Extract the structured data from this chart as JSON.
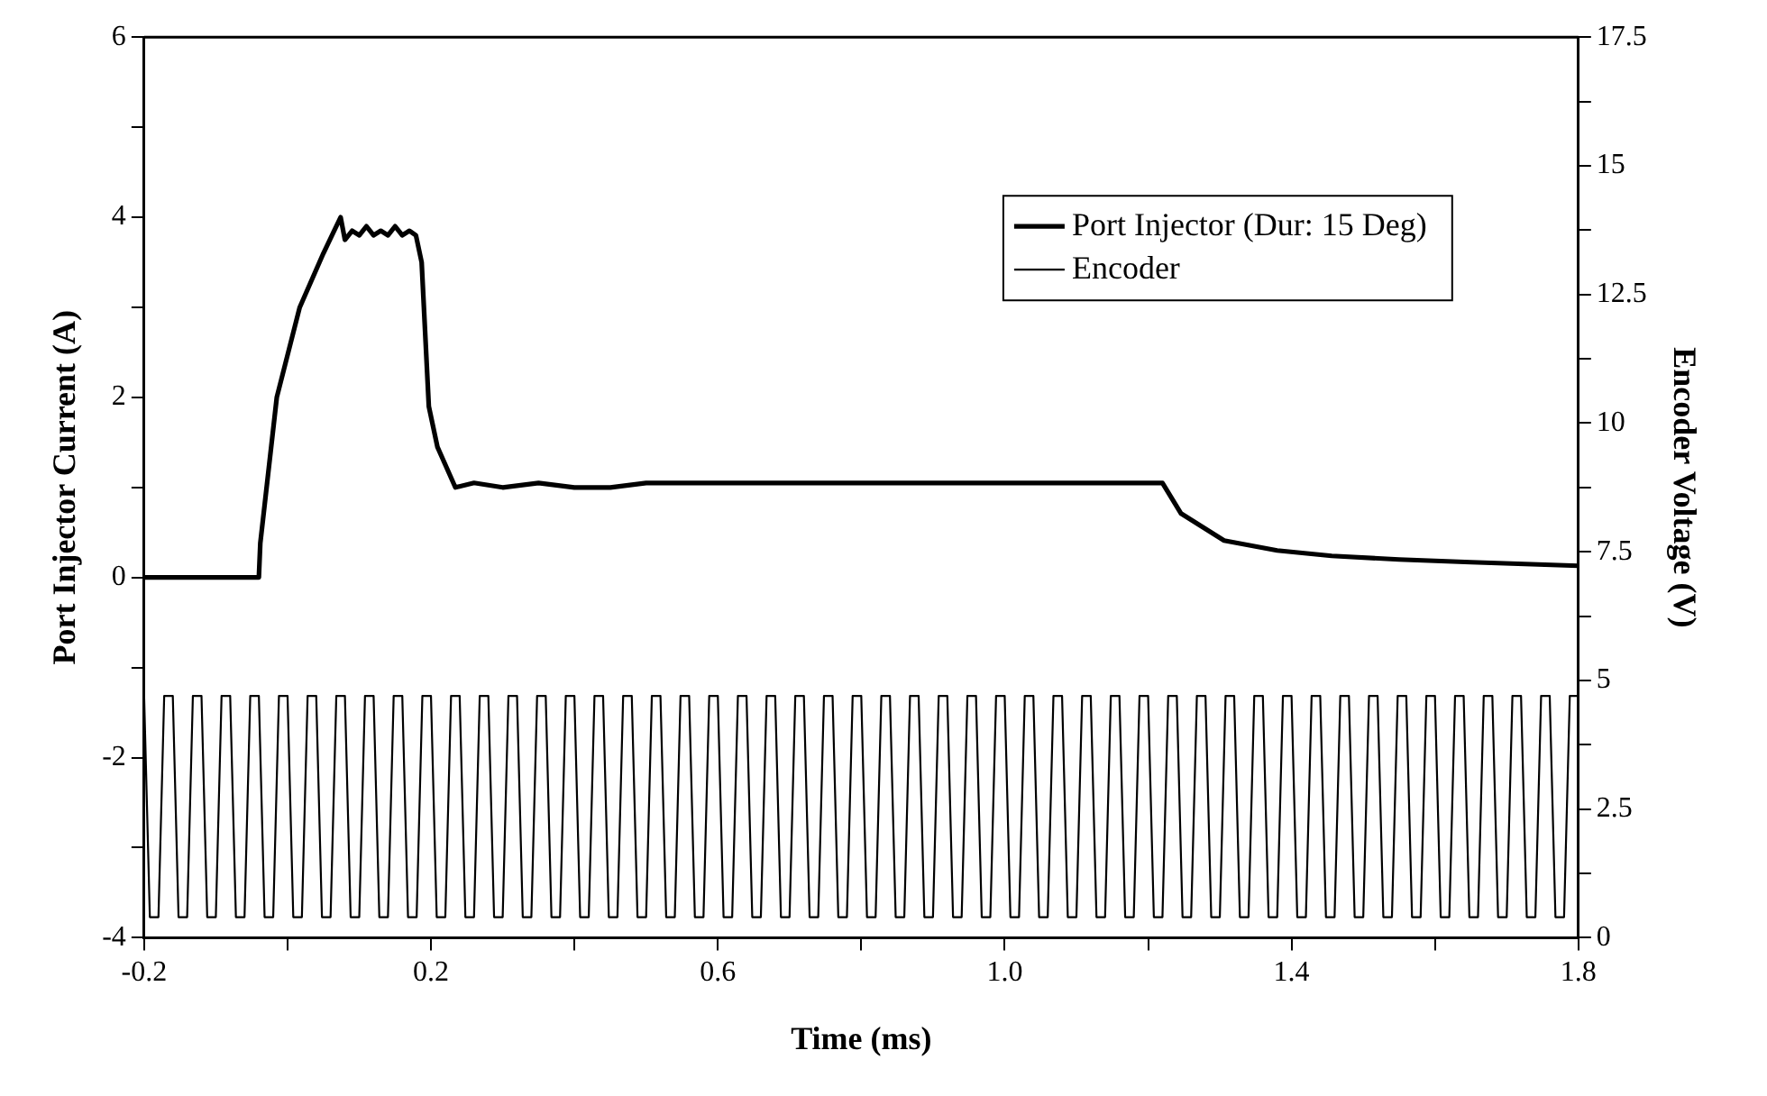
{
  "chart_data": {
    "type": "line",
    "xlabel": "Time (ms)",
    "ylabel": "Port Injector Current (A)",
    "y2label": "Encoder Voltage (V)",
    "xlim": [
      -0.2,
      1.8
    ],
    "xticks": [
      -0.2,
      {
        "value": 0,
        "label": null
      },
      0.2,
      {
        "value": 0.4,
        "label": null
      },
      0.6,
      {
        "value": 0.8,
        "label": null
      },
      {
        "value": 1,
        "label": "1.0"
      },
      {
        "value": 1.2,
        "label": null
      },
      1.4,
      {
        "value": 1.6,
        "label": null
      },
      1.8
    ],
    "ylim": [
      -4,
      6
    ],
    "yticks": [
      -4,
      {
        "value": -3,
        "label": null
      },
      -2,
      {
        "value": -1,
        "label": null
      },
      0,
      {
        "value": 1,
        "label": null
      },
      2,
      {
        "value": 3,
        "label": null
      },
      4,
      {
        "value": 5,
        "label": null
      },
      6
    ],
    "y2lim": [
      0,
      17.5
    ],
    "y2ticks": [
      0,
      {
        "value": 1.25,
        "label": null
      },
      2.5,
      {
        "value": 3.75,
        "label": null
      },
      5,
      {
        "value": 6.25,
        "label": null
      },
      7.5,
      {
        "value": 8.75,
        "label": null
      },
      10,
      {
        "value": 11.25,
        "label": null
      },
      12.5,
      {
        "value": 13.75,
        "label": null
      },
      15,
      {
        "value": 16.25,
        "label": null
      },
      17.5
    ],
    "grid": false,
    "legend": "top right",
    "series": [
      {
        "name": "Port Injector (Dur: 15 Deg)",
        "color": "#000000",
        "x": [
          -0.2,
          -0.04,
          -0.038,
          -0.015,
          0.017,
          0.05,
          0.074,
          0.08,
          0.09,
          0.1,
          0.11,
          0.12,
          0.13,
          0.14,
          0.15,
          0.16,
          0.17,
          0.179,
          0.187,
          0.197,
          0.209,
          0.234,
          0.26,
          0.3,
          0.35,
          0.4,
          0.45,
          0.5,
          0.6,
          0.7,
          0.8,
          0.9,
          1.0,
          1.1,
          1.2,
          1.22,
          1.246,
          1.306,
          1.38,
          1.456,
          1.55,
          1.65,
          1.8
        ],
        "values": [
          0,
          0,
          0.38,
          2.0,
          3.0,
          3.6,
          4.0,
          3.75,
          3.85,
          3.8,
          3.9,
          3.8,
          3.85,
          3.8,
          3.9,
          3.8,
          3.85,
          3.8,
          3.5,
          1.9,
          1.45,
          1.0,
          1.05,
          1.0,
          1.05,
          1.0,
          1.0,
          1.05,
          1.05,
          1.05,
          1.05,
          1.05,
          1.05,
          1.05,
          1.05,
          1.05,
          0.71,
          0.41,
          0.3,
          0.24,
          0.2,
          0.17,
          0.13
        ]
      },
      {
        "name": "Encoder",
        "color": "#000000",
        "axis": "y2",
        "x": [
          -0.2,
          -0.192,
          -0.18,
          -0.172,
          -0.16,
          -0.152,
          -0.14,
          -0.132,
          -0.12,
          -0.112,
          -0.1,
          -0.092,
          -0.08,
          -0.072,
          -0.06,
          -0.052,
          -0.04,
          -0.032,
          -0.02,
          -0.012,
          0,
          0.008,
          0.02,
          0.028,
          0.04,
          0.048,
          0.06,
          0.068,
          0.08,
          0.088,
          0.1,
          0.108,
          0.12,
          0.128,
          0.14,
          0.148,
          0.16,
          0.168,
          0.18,
          0.188,
          0.2,
          0.208,
          0.22,
          0.228,
          0.24,
          0.248,
          0.26,
          0.268,
          0.28,
          0.288,
          0.3,
          0.308,
          0.32,
          0.328,
          0.34,
          0.348,
          0.36,
          0.368,
          0.38,
          0.388,
          0.4,
          0.408,
          0.42,
          0.428,
          0.44,
          0.448,
          0.46,
          0.468,
          0.48,
          0.488,
          0.5,
          0.508,
          0.52,
          0.528,
          0.54,
          0.548,
          0.56,
          0.568,
          0.58,
          0.588,
          0.6,
          0.608,
          0.62,
          0.628,
          0.64,
          0.648,
          0.66,
          0.668,
          0.68,
          0.688,
          0.7,
          0.708,
          0.72,
          0.728,
          0.74,
          0.748,
          0.76,
          0.768,
          0.78,
          0.788,
          0.8,
          0.808,
          0.82,
          0.828,
          0.84,
          0.848,
          0.86,
          0.868,
          0.88,
          0.888,
          0.9,
          0.908,
          0.92,
          0.928,
          0.94,
          0.948,
          0.96,
          0.968,
          0.98,
          0.988,
          1.0,
          1.008,
          1.02,
          1.028,
          1.04,
          1.048,
          1.06,
          1.068,
          1.08,
          1.088,
          1.1,
          1.108,
          1.12,
          1.128,
          1.14,
          1.148,
          1.16,
          1.168,
          1.18,
          1.188,
          1.2,
          1.208,
          1.22,
          1.228,
          1.24,
          1.248,
          1.26,
          1.268,
          1.28,
          1.288,
          1.3,
          1.308,
          1.32,
          1.328,
          1.34,
          1.348,
          1.36,
          1.368,
          1.38,
          1.388,
          1.4,
          1.408,
          1.42,
          1.428,
          1.44,
          1.448,
          1.46,
          1.468,
          1.48,
          1.488,
          1.5,
          1.508,
          1.52,
          1.528,
          1.54,
          1.548,
          1.56,
          1.568,
          1.58,
          1.588,
          1.6,
          1.608,
          1.62,
          1.628,
          1.64,
          1.648,
          1.66,
          1.668,
          1.68,
          1.688,
          1.7,
          1.708,
          1.72,
          1.728,
          1.74,
          1.748,
          1.76,
          1.768,
          1.78,
          1.788,
          1.8
        ],
        "values": [
          4.7,
          0.4,
          0.4,
          4.7,
          4.7,
          0.4,
          0.4,
          4.7,
          4.7,
          0.4,
          0.4,
          4.7,
          4.7,
          0.4,
          0.4,
          4.7,
          4.7,
          0.4,
          0.4,
          4.7,
          4.7,
          0.4,
          0.4,
          4.7,
          4.7,
          0.4,
          0.4,
          4.7,
          4.7,
          0.4,
          0.4,
          4.7,
          4.7,
          0.4,
          0.4,
          4.7,
          4.7,
          0.4,
          0.4,
          4.7,
          4.7,
          0.4,
          0.4,
          4.7,
          4.7,
          0.4,
          0.4,
          4.7,
          4.7,
          0.4,
          0.4,
          4.7,
          4.7,
          0.4,
          0.4,
          4.7,
          4.7,
          0.4,
          0.4,
          4.7,
          4.7,
          0.4,
          0.4,
          4.7,
          4.7,
          0.4,
          0.4,
          4.7,
          4.7,
          0.4,
          0.4,
          4.7,
          4.7,
          0.4,
          0.4,
          4.7,
          4.7,
          0.4,
          0.4,
          4.7,
          4.7,
          0.4,
          0.4,
          4.7,
          4.7,
          0.4,
          0.4,
          4.7,
          4.7,
          0.4,
          0.4,
          4.7,
          4.7,
          0.4,
          0.4,
          4.7,
          4.7,
          0.4,
          0.4,
          4.7,
          4.7,
          0.4,
          0.4,
          4.7,
          4.7,
          0.4,
          0.4,
          4.7,
          4.7,
          0.4,
          0.4,
          4.7,
          4.7,
          0.4,
          0.4,
          4.7,
          4.7,
          0.4,
          0.4,
          4.7,
          4.7,
          0.4,
          0.4,
          4.7,
          4.7,
          0.4,
          0.4,
          4.7,
          4.7,
          0.4,
          0.4,
          4.7,
          4.7,
          0.4,
          0.4,
          4.7,
          4.7,
          0.4,
          0.4,
          4.7,
          4.7,
          0.4,
          0.4,
          4.7,
          4.7,
          0.4,
          0.4,
          4.7,
          4.7,
          0.4,
          0.4,
          4.7,
          4.7,
          0.4,
          0.4,
          4.7,
          4.7,
          0.4,
          0.4,
          4.7,
          4.7,
          0.4,
          0.4,
          4.7,
          4.7,
          0.4,
          0.4,
          4.7,
          4.7,
          0.4,
          0.4,
          4.7,
          4.7,
          0.4,
          0.4,
          4.7,
          4.7,
          0.4,
          0.4,
          4.7,
          4.7,
          0.4,
          0.4,
          4.7,
          4.7,
          0.4,
          0.4,
          4.7,
          4.7,
          0.4,
          0.4,
          4.7,
          4.7,
          0.4,
          0.4,
          4.7,
          4.7,
          0.4,
          0.4,
          4.7,
          4.7
        ]
      }
    ]
  }
}
